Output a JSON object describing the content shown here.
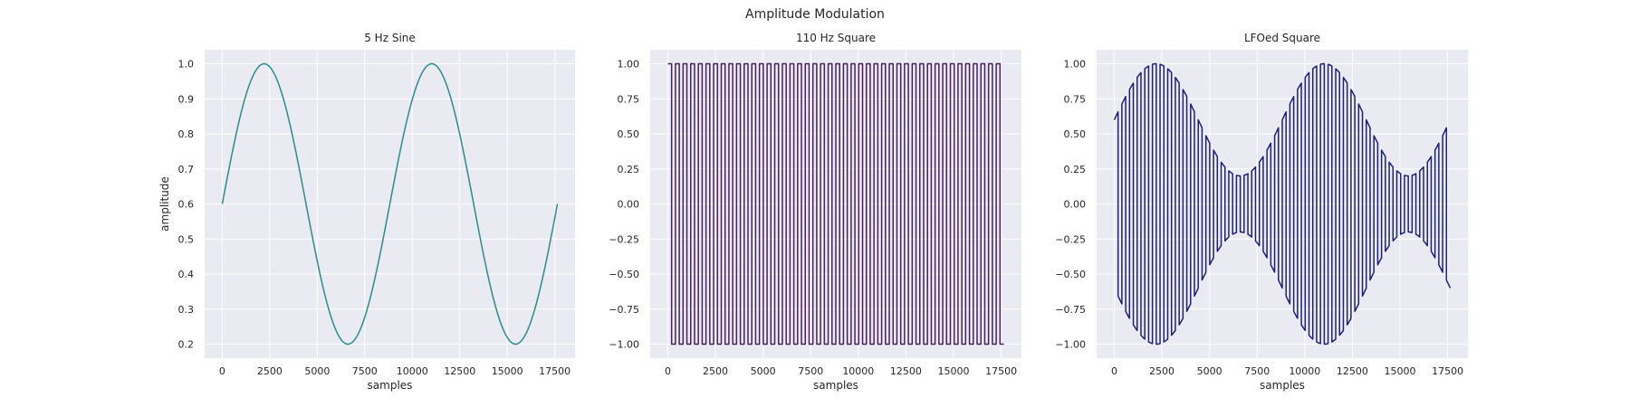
{
  "figure": {
    "title": "Amplitude Modulation"
  },
  "chart_data": [
    {
      "type": "line",
      "title": "5 Hz Sine",
      "xlabel": "samples",
      "ylabel": "amplitude",
      "xlim": [
        -925,
        18565
      ],
      "ylim": [
        0.16,
        1.04
      ],
      "xticks": [
        0,
        2500,
        5000,
        7500,
        10000,
        12500,
        15000,
        17500
      ],
      "xtick_labels": [
        "0",
        "2500",
        "5000",
        "7500",
        "10000",
        "12500",
        "15000",
        "17500"
      ],
      "yticks": [
        0.2,
        0.3,
        0.4,
        0.5,
        0.6,
        0.7,
        0.8,
        0.9,
        1.0
      ],
      "ytick_labels": [
        "0.2",
        "0.3",
        "0.4",
        "0.5",
        "0.6",
        "0.7",
        "0.8",
        "0.9",
        "1.0"
      ],
      "grid": true,
      "color": "#2a8c8c",
      "series": [
        {
          "x": [
            0,
            2205,
            4410,
            6615,
            8820,
            11025,
            13230,
            15435,
            17640
          ],
          "y": [
            0.6,
            1.0,
            0.6,
            0.2,
            0.6,
            1.0,
            0.6,
            0.2,
            0.6
          ]
        }
      ]
    },
    {
      "type": "line",
      "title": "110 Hz Square",
      "xlabel": "samples",
      "ylabel": "",
      "xlim": [
        -925,
        18565
      ],
      "ylim": [
        -1.1,
        1.1
      ],
      "xticks": [
        0,
        2500,
        5000,
        7500,
        10000,
        12500,
        15000,
        17500
      ],
      "xtick_labels": [
        "0",
        "2500",
        "5000",
        "7500",
        "10000",
        "12500",
        "15000",
        "17500"
      ],
      "yticks": [
        -1.0,
        -0.75,
        -0.5,
        -0.25,
        0.0,
        0.25,
        0.5,
        0.75,
        1.0
      ],
      "ytick_labels": [
        "−1.00",
        "−0.75",
        "−0.50",
        "−0.25",
        "0.00",
        "0.25",
        "0.50",
        "0.75",
        "1.00"
      ],
      "grid": true,
      "color": "#4a1f5f",
      "series": [
        {
          "x": [
            0,
            17640
          ],
          "y": [
            -1.0,
            1.0
          ]
        }
      ]
    },
    {
      "type": "line",
      "title": "LFOed Square",
      "xlabel": "samples",
      "ylabel": "",
      "xlim": [
        -925,
        18565
      ],
      "ylim": [
        -1.1,
        1.1
      ],
      "xticks": [
        0,
        2500,
        5000,
        7500,
        10000,
        12500,
        15000,
        17500
      ],
      "xtick_labels": [
        "0",
        "2500",
        "5000",
        "7500",
        "10000",
        "12500",
        "15000",
        "17500"
      ],
      "yticks": [
        -1.0,
        -0.75,
        -0.5,
        -0.25,
        0.0,
        0.25,
        0.5,
        0.75,
        1.0
      ],
      "ytick_labels": [
        "−1.00",
        "−0.75",
        "−0.50",
        "−0.25",
        "0.00",
        "0.25",
        "0.50",
        "0.75",
        "1.00"
      ],
      "grid": true,
      "color": "#1f1f7a",
      "series": [
        {
          "x": [
            0,
            2205,
            4410,
            6615,
            8820,
            11025,
            13230,
            15435,
            17640
          ],
          "y": [
            0.6,
            1.0,
            0.6,
            0.2,
            0.6,
            1.0,
            0.6,
            0.2,
            0.6
          ]
        }
      ]
    }
  ]
}
